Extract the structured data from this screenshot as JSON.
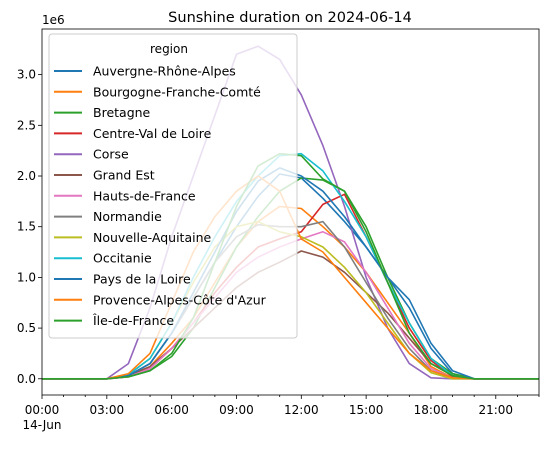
{
  "chart_data": {
    "type": "line",
    "title": "Sunshine duration on 2024-06-14",
    "xlabel": "",
    "ylabel": "",
    "y_offset_label": "1e6",
    "x_range_hours": [
      0,
      23
    ],
    "ylim": [
      -0.16,
      3.45
    ],
    "yticks": [
      0.0,
      0.5,
      1.0,
      1.5,
      2.0,
      2.5,
      3.0
    ],
    "ytick_labels": [
      "0.0",
      "0.5",
      "1.0",
      "1.5",
      "2.0",
      "2.5",
      "3.0"
    ],
    "xticks_hours": [
      0,
      3,
      6,
      9,
      12,
      15,
      18,
      21
    ],
    "xtick_labels": [
      "00:00",
      "03:00",
      "06:00",
      "09:00",
      "12:00",
      "15:00",
      "18:00",
      "21:00"
    ],
    "xtick_sublabel": "14-Jun",
    "grid": false,
    "legend": {
      "title": "region",
      "placement": "upper-left"
    },
    "x_hours": [
      0,
      1,
      2,
      3,
      4,
      5,
      6,
      7,
      8,
      9,
      10,
      11,
      12,
      13,
      14,
      15,
      16,
      17,
      18,
      19,
      20,
      21,
      22,
      23
    ],
    "series": [
      {
        "name": "Auvergne-Rhône-Alpes",
        "color": "#1f77b4",
        "values": [
          0,
          0,
          0,
          0,
          0.03,
          0.15,
          0.45,
          0.8,
          1.15,
          1.5,
          1.8,
          2.02,
          1.98,
          1.78,
          1.55,
          1.3,
          1.0,
          0.7,
          0.3,
          0.05,
          0,
          0,
          0,
          0
        ]
      },
      {
        "name": "Bourgogne-Franche-Comté",
        "color": "#ff7f0e",
        "values": [
          0,
          0,
          0,
          0,
          0.03,
          0.12,
          0.35,
          0.6,
          0.95,
          1.3,
          1.55,
          1.7,
          1.68,
          1.5,
          1.3,
          1.05,
          0.75,
          0.45,
          0.12,
          0.01,
          0,
          0,
          0,
          0
        ]
      },
      {
        "name": "Bretagne",
        "color": "#2ca02c",
        "values": [
          0,
          0,
          0,
          0,
          0.02,
          0.08,
          0.22,
          0.5,
          0.9,
          1.3,
          1.6,
          1.85,
          1.98,
          1.96,
          1.85,
          1.5,
          1.0,
          0.55,
          0.2,
          0.05,
          0,
          0,
          0,
          0
        ]
      },
      {
        "name": "Centre-Val de Loire",
        "color": "#d62728",
        "values": [
          0,
          0,
          0,
          0,
          0.02,
          0.1,
          0.3,
          0.55,
          0.85,
          1.1,
          1.3,
          1.38,
          1.45,
          1.72,
          1.82,
          1.4,
          0.95,
          0.5,
          0.18,
          0.02,
          0,
          0,
          0,
          0
        ]
      },
      {
        "name": "Corse",
        "color": "#9467bd",
        "values": [
          0,
          0,
          0,
          0,
          0.15,
          0.7,
          1.4,
          2.0,
          2.6,
          3.2,
          3.28,
          3.15,
          2.8,
          2.3,
          1.7,
          1.0,
          0.5,
          0.15,
          0.01,
          0,
          0,
          0,
          0,
          0
        ]
      },
      {
        "name": "Grand Est",
        "color": "#8c564b",
        "values": [
          0,
          0,
          0,
          0,
          0.03,
          0.12,
          0.3,
          0.5,
          0.7,
          0.9,
          1.05,
          1.15,
          1.26,
          1.2,
          1.05,
          0.85,
          0.65,
          0.4,
          0.15,
          0.03,
          0,
          0,
          0,
          0
        ]
      },
      {
        "name": "Hauts-de-France",
        "color": "#e377c2",
        "values": [
          0,
          0,
          0,
          0,
          0.02,
          0.1,
          0.3,
          0.55,
          0.8,
          1.05,
          1.2,
          1.3,
          1.38,
          1.45,
          1.35,
          1.05,
          0.7,
          0.35,
          0.1,
          0.01,
          0,
          0,
          0,
          0
        ]
      },
      {
        "name": "Normandie",
        "color": "#7f7f7f",
        "values": [
          0,
          0,
          0,
          0,
          0.03,
          0.15,
          0.45,
          0.8,
          1.15,
          1.4,
          1.52,
          1.5,
          1.5,
          1.55,
          1.3,
          0.95,
          0.6,
          0.3,
          0.08,
          0.01,
          0,
          0,
          0,
          0
        ]
      },
      {
        "name": "Nouvelle-Aquitaine",
        "color": "#bcbd22",
        "values": [
          0,
          0,
          0,
          0,
          0.04,
          0.2,
          0.55,
          0.95,
          1.3,
          1.5,
          1.55,
          1.45,
          1.4,
          1.3,
          1.1,
          0.85,
          0.55,
          0.25,
          0.06,
          0,
          0,
          0,
          0,
          0
        ]
      },
      {
        "name": "Occitanie",
        "color": "#17becf",
        "values": [
          0,
          0,
          0,
          0,
          0.04,
          0.2,
          0.55,
          1.0,
          1.4,
          1.75,
          2.0,
          2.2,
          2.22,
          2.05,
          1.75,
          1.4,
          0.95,
          0.55,
          0.2,
          0.03,
          0,
          0,
          0,
          0
        ]
      },
      {
        "name": "Pays de la Loire",
        "color": "#1f77b4",
        "values": [
          0,
          0,
          0,
          0,
          0.03,
          0.15,
          0.45,
          0.85,
          1.25,
          1.65,
          1.95,
          2.08,
          2.0,
          1.85,
          1.6,
          1.3,
          1.0,
          0.78,
          0.35,
          0.08,
          0,
          0,
          0,
          0
        ]
      },
      {
        "name": "Provence-Alpes-Côte d'Azur",
        "color": "#ff7f0e",
        "values": [
          0,
          0,
          0,
          0,
          0.05,
          0.25,
          0.75,
          1.25,
          1.6,
          1.85,
          2.0,
          1.85,
          1.38,
          1.25,
          1.0,
          0.75,
          0.5,
          0.25,
          0.08,
          0.01,
          0,
          0,
          0,
          0
        ]
      },
      {
        "name": "Île-de-France",
        "color": "#2ca02c",
        "values": [
          0,
          0,
          0,
          0,
          0.02,
          0.08,
          0.25,
          0.6,
          1.15,
          1.7,
          2.1,
          2.22,
          2.2,
          1.97,
          1.85,
          1.45,
          0.95,
          0.45,
          0.15,
          0.03,
          0,
          0,
          0,
          0
        ]
      }
    ]
  }
}
